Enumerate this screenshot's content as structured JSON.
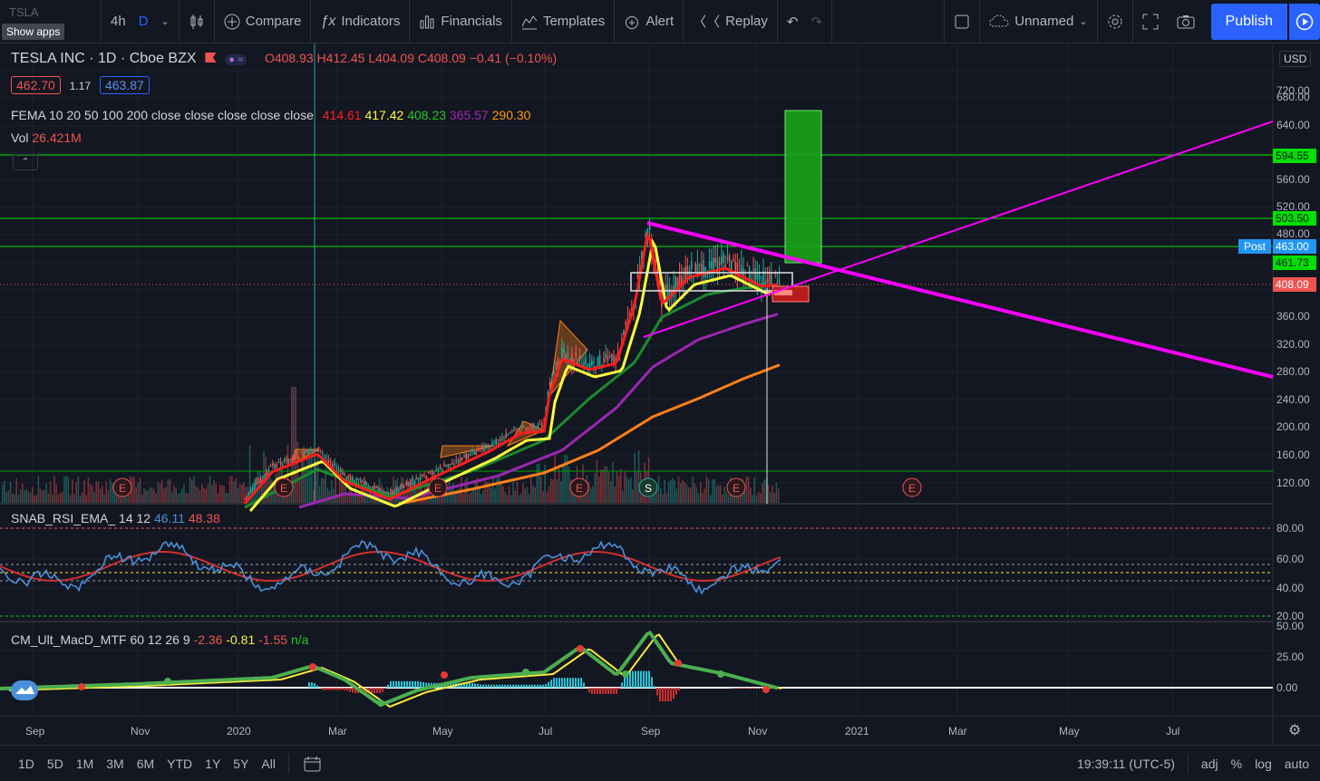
{
  "toolbar": {
    "ticker_mini": "TSLA",
    "show_apps": "Show apps",
    "interval_4h": "4h",
    "interval_d": "D",
    "compare": "Compare",
    "indicators": "Indicators",
    "financials": "Financials",
    "templates": "Templates",
    "alert": "Alert",
    "replay": "Replay",
    "layout_name": "Unnamed",
    "publish": "Publish"
  },
  "legend": {
    "symbol": "TESLA INC · 1D · Cboe BZX",
    "open": "O408.93",
    "high": "H412.45",
    "low": "L404.09",
    "close": "C408.09",
    "change": "−0.41 (−0.10%)",
    "bid": "462.70",
    "spread": "1.17",
    "ask": "463.87",
    "fema_label": "FEMA 10 20 50 100 200 close close close close close",
    "fema_values": [
      "414.61",
      "417.42",
      "408.23",
      "365.57",
      "290.30"
    ],
    "vol_label": "Vol",
    "vol_value": "26.421M",
    "rsi_label": "SNAB_RSI_EMA_ 14 12",
    "rsi_v1": "46.11",
    "rsi_v2": "48.38",
    "macd_label": "CM_Ult_MacD_MTF 60 12 26 9",
    "macd_v1": "-2.36",
    "macd_v2": "-0.81",
    "macd_v3": "-1.55",
    "macd_v4": "n/a"
  },
  "price_axis": {
    "currency": "USD",
    "ticks": [
      "720.00",
      "680.00",
      "640.00",
      "594.55",
      "560.00",
      "520.00",
      "503.50",
      "480.00",
      "463.00",
      "461.73",
      "408.09",
      "360.00",
      "320.00",
      "280.00",
      "240.00",
      "200.00",
      "160.00",
      "120.00"
    ],
    "post_label": "Post"
  },
  "rsi_axis": [
    "80.00",
    "60.00",
    "40.00",
    "20.00"
  ],
  "macd_axis": [
    "50.00",
    "25.00",
    "0.00"
  ],
  "time_axis": [
    "Sep",
    "Nov",
    "2020",
    "Mar",
    "May",
    "Jul",
    "Sep",
    "Nov",
    "2021",
    "Mar",
    "May",
    "Jul"
  ],
  "bottom": {
    "ranges": [
      "1D",
      "5D",
      "1M",
      "3M",
      "6M",
      "YTD",
      "1Y",
      "5Y",
      "All"
    ],
    "time": "19:39:11 (UTC-5)",
    "adj": "adj",
    "pct": "%",
    "log": "log",
    "auto": "auto"
  },
  "events": [
    "E",
    "E",
    "E",
    "E",
    "S",
    "E",
    "E"
  ],
  "colors": {
    "bg": "#131722",
    "up": "#26a69a",
    "down": "#ef5350",
    "ema10": "#ff1e1e",
    "ema20": "#ffff3c",
    "ema50": "#1b8a2e",
    "ema100": "#9c27b0",
    "ema200": "#ff7f17",
    "trend": "#ff00ff",
    "hline": "#00e000",
    "accent": "#2962ff"
  }
}
